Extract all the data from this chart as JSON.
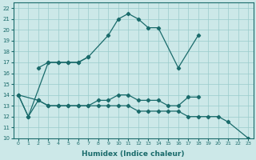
{
  "xlabel": "Humidex (Indice chaleur)",
  "bg_color": "#cce8e8",
  "grid_color": "#99cccc",
  "line_color": "#1a6b6b",
  "ylim": [
    10,
    22.5
  ],
  "xlim": [
    -0.5,
    23.5
  ],
  "series1_x": [
    0,
    1,
    3,
    4,
    5,
    6,
    7,
    9,
    10,
    11,
    12,
    13,
    14,
    16,
    18
  ],
  "series1_y": [
    14,
    12,
    17,
    17,
    17,
    17,
    17.5,
    19.5,
    21,
    21.5,
    21,
    20.2,
    20.2,
    16.5,
    19.5
  ],
  "series2_x": [
    2,
    3,
    4,
    5,
    6,
    7
  ],
  "series2_y": [
    16.5,
    17,
    17,
    17,
    17,
    17.5
  ],
  "series3_x": [
    0,
    2,
    3,
    4,
    5,
    6,
    7,
    8,
    9,
    10,
    11,
    12,
    13,
    14,
    15,
    16,
    17,
    18
  ],
  "series3_y": [
    14,
    13.5,
    13,
    13,
    13,
    13,
    13,
    13.5,
    13.5,
    14,
    14,
    13.5,
    13.5,
    13.5,
    13,
    13,
    13.8,
    13.8
  ],
  "series4_x": [
    0,
    1,
    2,
    3,
    4,
    5,
    6,
    7,
    8,
    9,
    10,
    11,
    12,
    13,
    14,
    15,
    16,
    17,
    18,
    19,
    20,
    21,
    23
  ],
  "series4_y": [
    14,
    12,
    13.5,
    13,
    13,
    13,
    13,
    13,
    13,
    13,
    13,
    13,
    12.5,
    12.5,
    12.5,
    12.5,
    12.5,
    12,
    12,
    12,
    12,
    11.5,
    10
  ],
  "yticks": [
    10,
    11,
    12,
    13,
    14,
    15,
    16,
    17,
    18,
    19,
    20,
    21,
    22
  ],
  "xticks": [
    0,
    1,
    2,
    3,
    4,
    5,
    6,
    7,
    8,
    9,
    10,
    11,
    12,
    13,
    14,
    15,
    16,
    17,
    18,
    19,
    20,
    21,
    22,
    23
  ]
}
